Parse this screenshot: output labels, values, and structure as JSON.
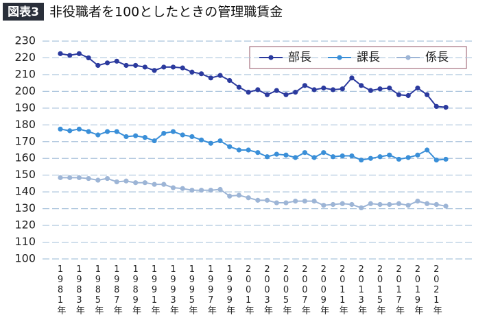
{
  "chart_data": {
    "type": "line",
    "badge": "図表3",
    "title": "非役職者を100としたときの管理職賃金",
    "categories": [
      "1981年",
      null,
      "1983年",
      null,
      "1985年",
      null,
      "1987年",
      null,
      "1989年",
      null,
      "1991年",
      null,
      "1993年",
      null,
      "1995年",
      null,
      "1997年",
      null,
      "1999年",
      null,
      "2001年",
      null,
      "2003年",
      null,
      "2005年",
      null,
      "2007年",
      null,
      "2009年",
      null,
      "2011年",
      null,
      "2013年",
      null,
      "2015年",
      null,
      "2017年",
      null,
      "2019年",
      null,
      "2021年",
      null
    ],
    "series": [
      {
        "name": "部長",
        "color": "#2b3a9e",
        "values": [
          222.5,
          221.5,
          222.5,
          220,
          215.5,
          217,
          218,
          215.5,
          215.5,
          214.5,
          212.5,
          214.5,
          214.5,
          214,
          211.5,
          210.5,
          208,
          209.5,
          206.5,
          202.5,
          199.5,
          201,
          198,
          200.5,
          198,
          199.5,
          203.5,
          201,
          202,
          201,
          201.5,
          208,
          203.5,
          200.5,
          201.5,
          202,
          198,
          197.5,
          202,
          198,
          191,
          190.5
        ]
      },
      {
        "name": "課長",
        "color": "#3a8fd8",
        "values": [
          177.5,
          176.5,
          177.5,
          176,
          174,
          176,
          176,
          173,
          173.5,
          172.5,
          170.5,
          175,
          176,
          174,
          173,
          171,
          169,
          170.5,
          167,
          165,
          165,
          163.5,
          161,
          162.5,
          162,
          160.5,
          163.5,
          160.5,
          163.5,
          161,
          161.5,
          161.5,
          159,
          160,
          161,
          162,
          159.5,
          160.5,
          162,
          165,
          159,
          159.5
        ]
      },
      {
        "name": "係長",
        "color": "#9db5d6",
        "values": [
          148.5,
          148.5,
          148.5,
          148,
          147,
          148,
          146,
          146.5,
          145.5,
          145.5,
          144.5,
          144.5,
          142.5,
          142,
          141,
          141,
          141,
          141.5,
          137.5,
          138,
          136.5,
          135,
          135,
          133.5,
          133.5,
          134.5,
          134.5,
          134.5,
          132,
          132.5,
          133,
          132.5,
          130.5,
          133,
          132.5,
          132.5,
          133,
          132,
          134.5,
          133,
          132.5,
          131.5
        ]
      }
    ],
    "ylim": [
      100,
      230
    ],
    "yticks": [
      100,
      110,
      120,
      130,
      140,
      150,
      160,
      170,
      180,
      190,
      200,
      210,
      220,
      230
    ],
    "grid": true,
    "legend": "top-right"
  }
}
